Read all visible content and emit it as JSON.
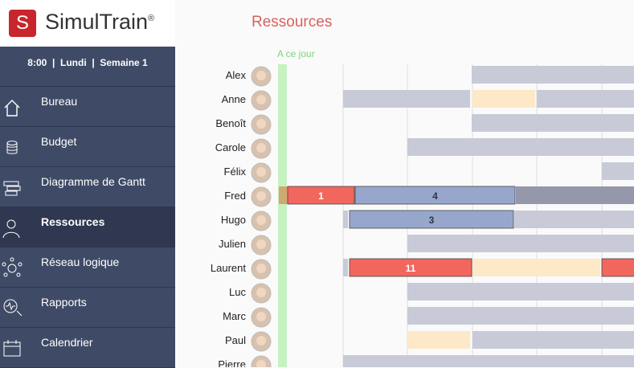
{
  "logo": {
    "name": "SimulTrain",
    "mark": "®",
    "letter": "S"
  },
  "status": "8:00  |  Lundi  |  Semaine 1",
  "menu": [
    "Bureau",
    "Budget",
    "Diagramme de Gantt",
    "Ressources",
    "Réseau logique",
    "Rapports",
    "Calendrier"
  ],
  "title": "Ressources",
  "today_label": "A ce jour",
  "resources": [
    "Alex",
    "Anne",
    "Benoît",
    "Carole",
    "Félix",
    "Fred",
    "Hugo",
    "Julien",
    "Laurent",
    "Luc",
    "Marc",
    "Paul",
    "Pierre"
  ],
  "task_labels": [
    "1",
    "4",
    "3",
    "11"
  ]
}
